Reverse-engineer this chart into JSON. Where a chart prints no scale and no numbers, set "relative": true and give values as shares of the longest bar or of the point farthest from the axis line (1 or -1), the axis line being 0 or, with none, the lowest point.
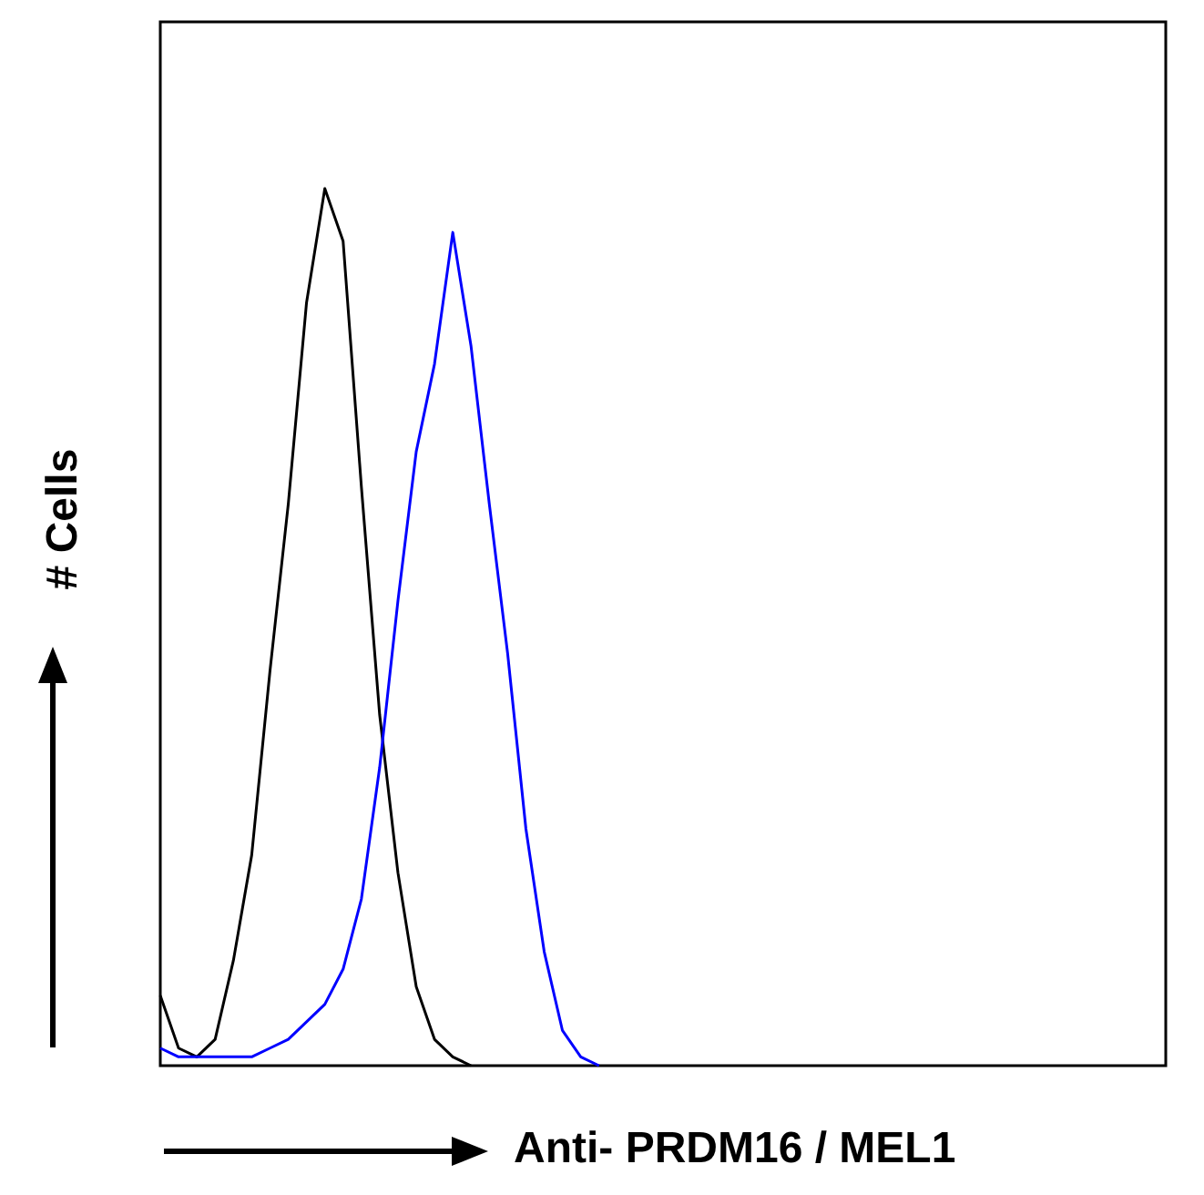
{
  "chart_data": {
    "type": "line",
    "relative": true,
    "xlabel": "Anti- PRDM16 / MEL1",
    "ylabel": "# Cells",
    "marker": "none",
    "categories": [
      null,
      null,
      null,
      null,
      null,
      null,
      null,
      null,
      null,
      null,
      null,
      null,
      null,
      null,
      null,
      null,
      null,
      null,
      null,
      null,
      null,
      null,
      null,
      null,
      null,
      null,
      null,
      null,
      null,
      null,
      null,
      null,
      null,
      null,
      null,
      null,
      null,
      null,
      null,
      null,
      null,
      null,
      null,
      null,
      null,
      null,
      null,
      null,
      null,
      null,
      null,
      null,
      null,
      null,
      null,
      null
    ],
    "series": [
      {
        "color": "#000000",
        "values": [
          0.08,
          0.02,
          0.01,
          0.03,
          0.12,
          0.24,
          0.45,
          0.64,
          0.87,
          1,
          0.94,
          0.66,
          0.4,
          0.22,
          0.09,
          0.03,
          0.01,
          0,
          null,
          null,
          null,
          null,
          null,
          null,
          null,
          null,
          null,
          null,
          null,
          null,
          null,
          null,
          null,
          null,
          null,
          null,
          null,
          null,
          null,
          null,
          null,
          null,
          null,
          null,
          null,
          null,
          null,
          null,
          null,
          null,
          null,
          null,
          null,
          null,
          null,
          null
        ]
      },
      {
        "color": "#0000ff",
        "values": [
          0.02,
          0.01,
          0.01,
          0.01,
          0.01,
          0.01,
          0.02,
          0.03,
          0.05,
          0.07,
          0.11,
          0.19,
          0.34,
          0.53,
          0.7,
          0.8,
          0.95,
          0.82,
          0.64,
          0.47,
          0.27,
          0.13,
          0.04,
          0.01,
          0,
          null,
          null,
          null,
          null,
          null,
          null,
          null,
          null,
          null,
          null,
          null,
          null,
          null,
          null,
          null,
          null,
          null,
          null,
          null,
          null,
          null,
          null,
          null,
          null,
          null,
          null,
          null,
          null,
          null,
          null,
          null
        ]
      }
    ]
  }
}
